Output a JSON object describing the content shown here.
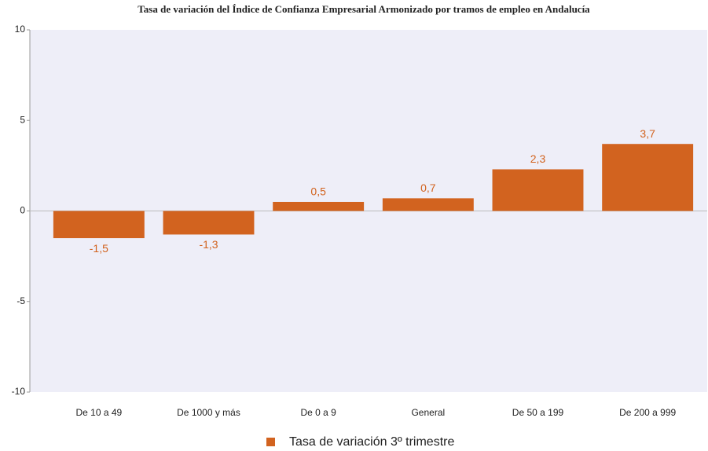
{
  "chart_data": {
    "type": "bar",
    "title": "Tasa de variación del Índice de Confianza Empresarial Armonizado por tramos de empleo en Andalucía",
    "categories": [
      "De 10 a 49",
      "De 1000 y más",
      "De 0 a 9",
      "General",
      "De 50 a 199",
      "De 200 a 999"
    ],
    "series": [
      {
        "name": "Tasa de variación 3º trimestre",
        "color": "#d2631f",
        "values": [
          -1.5,
          -1.3,
          0.5,
          0.7,
          2.3,
          3.7
        ],
        "value_labels": [
          "-1,5",
          "-1,3",
          "0,5",
          "0,7",
          "2,3",
          "3,7"
        ]
      }
    ],
    "ylim": [
      -10,
      10
    ],
    "yticks": [
      -10,
      -5,
      0,
      5,
      10
    ],
    "grid": false,
    "legend": "bottom"
  }
}
